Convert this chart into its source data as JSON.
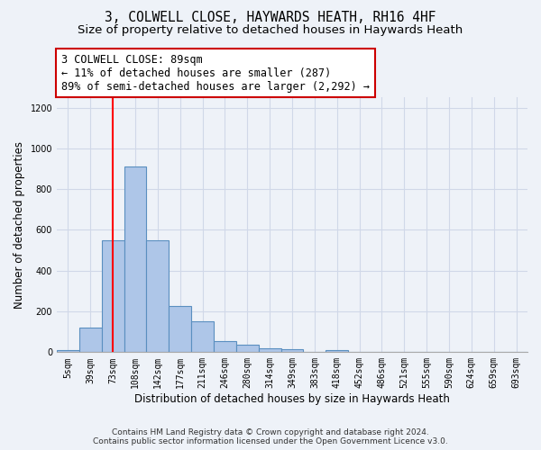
{
  "title": "3, COLWELL CLOSE, HAYWARDS HEATH, RH16 4HF",
  "subtitle": "Size of property relative to detached houses in Haywards Heath",
  "xlabel": "Distribution of detached houses by size in Haywards Heath",
  "ylabel": "Number of detached properties",
  "footer_line1": "Contains HM Land Registry data © Crown copyright and database right 2024.",
  "footer_line2": "Contains public sector information licensed under the Open Government Licence v3.0.",
  "bin_labels": [
    "5sqm",
    "39sqm",
    "73sqm",
    "108sqm",
    "142sqm",
    "177sqm",
    "211sqm",
    "246sqm",
    "280sqm",
    "314sqm",
    "349sqm",
    "383sqm",
    "418sqm",
    "452sqm",
    "486sqm",
    "521sqm",
    "555sqm",
    "590sqm",
    "624sqm",
    "659sqm",
    "693sqm"
  ],
  "bar_heights": [
    10,
    120,
    550,
    910,
    550,
    225,
    150,
    55,
    35,
    20,
    15,
    0,
    10,
    0,
    0,
    0,
    0,
    0,
    0,
    0,
    0
  ],
  "bar_color": "#aec6e8",
  "bar_edge_color": "#5a8fc0",
  "grid_color": "#d0d8e8",
  "background_color": "#eef2f8",
  "red_line_x": 2.0,
  "annotation_text": "3 COLWELL CLOSE: 89sqm\n← 11% of detached houses are smaller (287)\n89% of semi-detached houses are larger (2,292) →",
  "annotation_box_color": "#ffffff",
  "annotation_border_color": "#cc0000",
  "ylim": [
    0,
    1250
  ],
  "yticks": [
    0,
    200,
    400,
    600,
    800,
    1000,
    1200
  ],
  "title_fontsize": 10.5,
  "subtitle_fontsize": 9.5,
  "annotation_fontsize": 8.5,
  "axis_fontsize": 8.5,
  "tick_fontsize": 7,
  "footer_fontsize": 6.5
}
